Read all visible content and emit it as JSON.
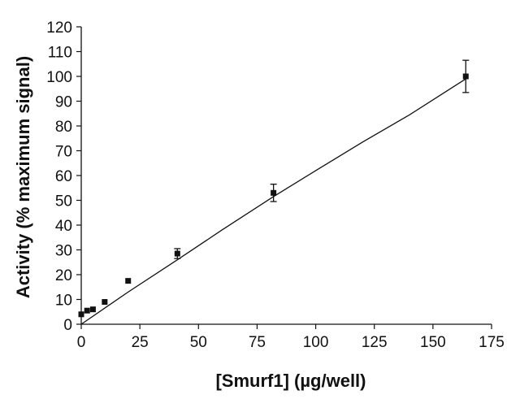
{
  "chart_data": {
    "type": "scatter",
    "title": "",
    "xlabel": "[Smurf1] (µg/well)",
    "ylabel": "Activity (% maximum signal)",
    "xlim": [
      0,
      175
    ],
    "ylim": [
      0,
      120
    ],
    "xticks": [
      0,
      25,
      50,
      75,
      100,
      125,
      150,
      175
    ],
    "yticks": [
      0,
      10,
      20,
      30,
      40,
      50,
      60,
      70,
      80,
      90,
      100,
      110,
      120
    ],
    "grid": false,
    "points": [
      {
        "x": 0,
        "y": 4,
        "err": 0
      },
      {
        "x": 2.5,
        "y": 5.5,
        "err": 0
      },
      {
        "x": 5,
        "y": 6,
        "err": 0
      },
      {
        "x": 10,
        "y": 9,
        "err": 0
      },
      {
        "x": 20,
        "y": 17.5,
        "err": 0
      },
      {
        "x": 41,
        "y": 28.5,
        "err": 2
      },
      {
        "x": 82,
        "y": 53,
        "err": 3.5
      },
      {
        "x": 164,
        "y": 100,
        "err": 6.5
      }
    ],
    "fit_line": {
      "label": "fitted curve",
      "x": [
        0,
        20,
        41,
        60,
        82,
        100,
        120,
        140,
        164
      ],
      "y": [
        0,
        13,
        26,
        38,
        51.5,
        62,
        73.5,
        84.5,
        99
      ]
    },
    "colors": {
      "marks": "#111111",
      "background": "#ffffff"
    }
  }
}
